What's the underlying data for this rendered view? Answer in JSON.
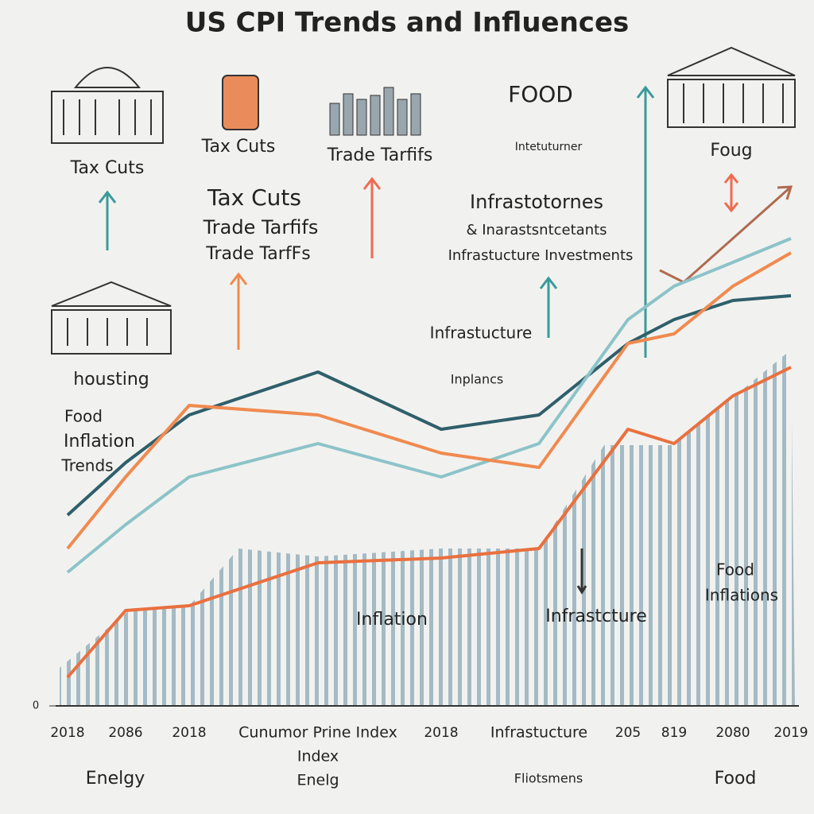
{
  "chart_data": {
    "type": "line",
    "title": "US CPI Trends and Influences",
    "categories": [
      "2018",
      "2086",
      "2018",
      "Cunumor Prine Index",
      "2018",
      "Infrastucture",
      "205",
      "819",
      "2080",
      "2019"
    ],
    "series": [
      {
        "color": "#2f5f6b",
        "values": [
          40,
          51,
          61,
          70,
          58,
          61,
          76,
          81,
          85,
          86
        ]
      },
      {
        "color": "#8cc3c9",
        "values": [
          28,
          38,
          48,
          55,
          48,
          55,
          81,
          88,
          93,
          98
        ]
      },
      {
        "color": "#f08a50",
        "values": [
          33,
          48,
          63,
          61,
          53,
          50,
          76,
          78,
          88,
          95
        ]
      },
      {
        "color": "#e9703f",
        "values": [
          6,
          20,
          21,
          30,
          31,
          33,
          58,
          55,
          65,
          71
        ]
      }
    ],
    "ylim": [
      0,
      100
    ],
    "yticks": [
      0
    ],
    "grid": false,
    "annotations": [
      "Tax Cuts",
      "Tax Cuts",
      "Trade Tarfifs",
      "FOOD",
      "Intetuturner",
      "Foug",
      "Tax Cuts",
      "Trade Tarfifs",
      "Trade TarfFs",
      "Infrastotornes",
      "& Inarastsntcetants",
      "Infrastucture Investments",
      "housting",
      "Infrastucture",
      "Inplancs",
      "Food",
      "Inflation",
      "Trends",
      "Inflation",
      "Infrastcture",
      "Food",
      "Inflations",
      "Index",
      "Enelg",
      "Enelgy",
      "Fliotsmens",
      "Food"
    ]
  }
}
